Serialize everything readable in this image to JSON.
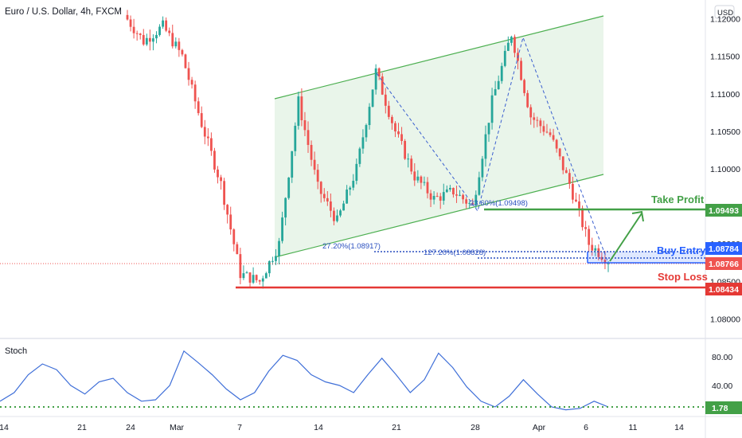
{
  "header": {
    "symbol_title": "Euro / U.S. Dollar, 4h, FXCM",
    "currency_button": "USD"
  },
  "indicator": {
    "title": "Stoch"
  },
  "annotations": {
    "take_profit": "Take Profit",
    "buy_entry": "Buy Entry",
    "stop_loss": "Stop Loss",
    "fib_low": "27.20%(1.08917)",
    "fib_mid": "127.20%(1.08828)",
    "fib_top": "23.60%(1.09498)"
  },
  "price_tags": {
    "take_profit": "1.09493",
    "buy_entry": "1.08784",
    "current": "1.08766",
    "stop_loss": "1.08434",
    "stoch": "1.78"
  },
  "colors": {
    "up": "#26a69a",
    "down": "#ef5350",
    "take_profit": "#43a047",
    "stop_loss": "#e53935",
    "buy_entry": "#2962ff",
    "stoch_line": "#3f6fd8",
    "channel": "#4caf50"
  },
  "chart_data": [
    {
      "type": "candlestick",
      "title": "Euro / U.S. Dollar, 4h, FXCM",
      "ylim": [
        1.0775,
        1.1225
      ],
      "y_ticks": [
        "1.12000",
        "1.11500",
        "1.11000",
        "1.10500",
        "1.10000",
        "1.09500",
        "1.09000",
        "1.08500",
        "1.08000"
      ],
      "x_ticks": [
        "14",
        "21",
        "24",
        "Mar",
        "7",
        "14",
        "21",
        "28",
        "Apr",
        "6",
        "11",
        "14"
      ],
      "approx_path": [
        1.1205,
        1.117,
        1.119,
        1.115,
        1.106,
        1.098,
        1.086,
        1.085,
        1.09,
        1.109,
        1.0975,
        1.093,
        1.1,
        1.113,
        1.105,
        1.099,
        1.096,
        1.097,
        1.095,
        1.109,
        1.118,
        1.107,
        1.1045,
        1.098,
        1.09,
        1.0878
      ],
      "levels": {
        "take_profit": 1.09493,
        "buy_entry": 1.08784,
        "current": 1.08766,
        "stop_loss": 1.08434
      },
      "channel": {
        "lower_start": 1.0888,
        "lower_end": 1.099,
        "upper_start": 1.11,
        "upper_end": 1.1205
      }
    },
    {
      "type": "line",
      "title": "Stoch",
      "ylim": [
        0,
        100
      ],
      "y_ticks": [
        "80.00",
        "40.00"
      ],
      "values": [
        18,
        30,
        55,
        70,
        62,
        40,
        28,
        45,
        50,
        30,
        18,
        20,
        40,
        88,
        72,
        55,
        35,
        20,
        30,
        60,
        82,
        75,
        55,
        45,
        40,
        30,
        55,
        78,
        55,
        30,
        48,
        85,
        65,
        38,
        18,
        10,
        25,
        48,
        28,
        10,
        6,
        8,
        18,
        10
      ],
      "last_value": 1.78
    }
  ]
}
